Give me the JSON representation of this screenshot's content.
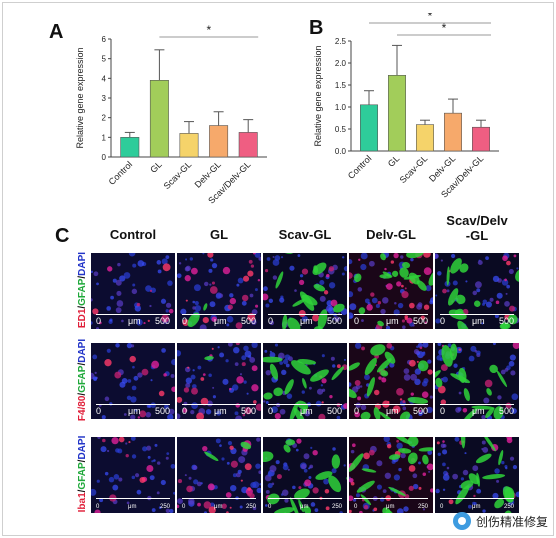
{
  "panels": {
    "a": "A",
    "b": "B",
    "c": "C"
  },
  "chart_data": [
    {
      "type": "bar",
      "ylabel": "Relative gene expression",
      "categories": [
        "Control",
        "GL",
        "Scav-GL",
        "Delv-GL",
        "Scav/Delv-GL"
      ],
      "values": [
        1.0,
        3.9,
        1.2,
        1.6,
        1.25
      ],
      "errors": [
        0.25,
        1.55,
        0.6,
        0.7,
        0.65
      ],
      "ylim": [
        0,
        6
      ],
      "yticks": [
        0,
        1,
        2,
        3,
        4,
        5,
        6
      ],
      "colors": [
        "#2ecc9a",
        "#a2cd5a",
        "#f5d36a",
        "#f6a96b",
        "#ef5e82"
      ],
      "significance": [
        {
          "from": "GL",
          "to": "Scav/Delv-GL",
          "label": "*"
        }
      ]
    },
    {
      "type": "bar",
      "ylabel": "Relative gene expression",
      "categories": [
        "Control",
        "GL",
        "Scav-GL",
        "Delv-GL",
        "Scav/Delv-GL"
      ],
      "values": [
        1.05,
        1.72,
        0.6,
        0.86,
        0.54
      ],
      "errors": [
        0.32,
        0.68,
        0.1,
        0.32,
        0.16
      ],
      "ylim": [
        0,
        2.5
      ],
      "yticks": [
        0.0,
        0.5,
        1.0,
        1.5,
        2.0,
        2.5
      ],
      "colors": [
        "#2ecc9a",
        "#a2cd5a",
        "#f5d36a",
        "#f6a96b",
        "#ef5e82"
      ],
      "significance": [
        {
          "from": "Control",
          "to": "Scav/Delv-GL",
          "label": "*"
        },
        {
          "from": "GL",
          "to": "Scav/Delv-GL",
          "label": "*"
        }
      ]
    }
  ],
  "micrograph": {
    "columns": [
      "Control",
      "GL",
      "Scav-GL",
      "Delv-GL",
      "Scav/Delv\n-GL"
    ],
    "rows": [
      {
        "marker": "ED1",
        "sep1": "/",
        "gfap": "GFAP",
        "sep2": "/",
        "dapi": "DAPI"
      },
      {
        "marker": "F4/80",
        "sep1": "/",
        "gfap": "GFAP",
        "sep2": "/",
        "dapi": "DAPI"
      },
      {
        "marker": "Iba1",
        "sep1": "/",
        "gfap": "GFAP",
        "sep2": "/",
        "dapi": "DAPI"
      }
    ],
    "scalebar": {
      "zero": "0",
      "unit": "μm",
      "max": "500",
      "small_max": "250"
    },
    "colors": {
      "marker": "#e0203a",
      "gfap": "#1fa83a",
      "dapi": "#2234c8"
    }
  },
  "watermark": {
    "text": "创伤精准修复",
    "icon": "brand-icon"
  }
}
